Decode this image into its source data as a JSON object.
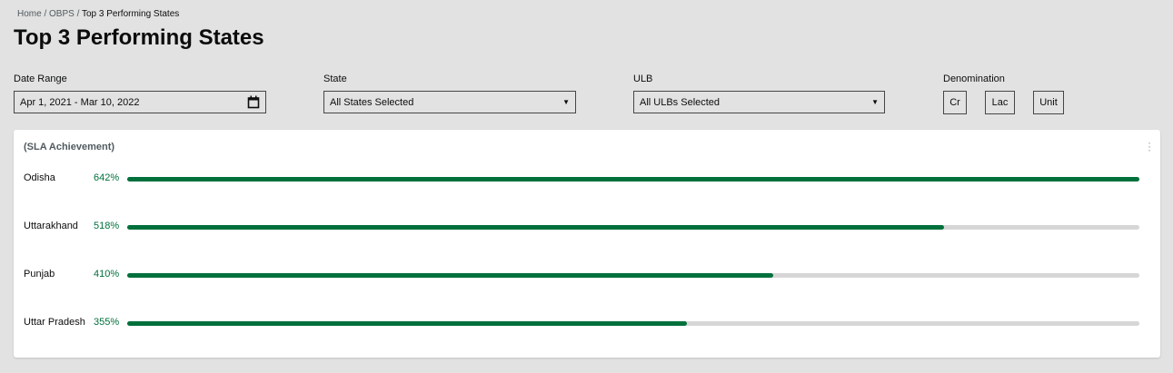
{
  "breadcrumb": {
    "home": "Home",
    "sep": " / ",
    "obps": "OBPS",
    "current": "Top 3 Performing States"
  },
  "page_title": "Top 3 Performing States",
  "filters": {
    "date_range": {
      "label": "Date Range",
      "value": "Apr 1, 2021 - Mar 10, 2022"
    },
    "state": {
      "label": "State",
      "value": "All States Selected"
    },
    "ulb": {
      "label": "ULB",
      "value": "All ULBs Selected"
    },
    "denomination": {
      "label": "Denomination",
      "options": [
        "Cr",
        "Lac",
        "Unit"
      ]
    }
  },
  "card": {
    "title": "(SLA Achievement)",
    "bar_color": "#00703c",
    "track_color": "#d6d6d6",
    "rows": [
      {
        "name": "Odisha",
        "pct": "642%",
        "value": 642
      },
      {
        "name": "Uttarakhand",
        "pct": "518%",
        "value": 518
      },
      {
        "name": "Punjab",
        "pct": "410%",
        "value": 410
      },
      {
        "name": "Uttar Pradesh",
        "pct": "355%",
        "value": 355
      }
    ]
  }
}
